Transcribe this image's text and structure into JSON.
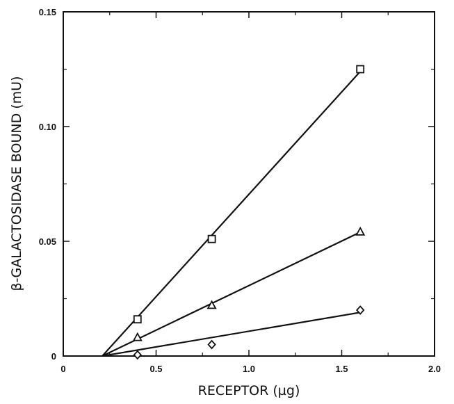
{
  "chart_data": {
    "type": "scatter",
    "title": "",
    "xlabel": "RECEPTOR (µg)",
    "ylabel": "β-GALACTOSIDASE BOUND (mU)",
    "xlim": [
      0,
      2.0
    ],
    "ylim": [
      0,
      0.15
    ],
    "x_ticks": [
      "0",
      "0.5",
      "1.0",
      "1.5",
      "2.0"
    ],
    "y_ticks": [
      "0",
      "0.05",
      "0.10",
      "0.15"
    ],
    "grid": false,
    "legend": "none",
    "series": [
      {
        "marker": "square",
        "points": [
          [
            0.4,
            0.016
          ],
          [
            0.8,
            0.051
          ],
          [
            1.6,
            0.125
          ]
        ],
        "fit_line": [
          [
            0.21,
            0.0
          ],
          [
            1.6,
            0.124
          ]
        ]
      },
      {
        "marker": "triangle",
        "points": [
          [
            0.4,
            0.008
          ],
          [
            0.8,
            0.022
          ],
          [
            1.6,
            0.054
          ]
        ],
        "fit_line": [
          [
            0.21,
            0.0
          ],
          [
            1.6,
            0.054
          ]
        ]
      },
      {
        "marker": "diamond",
        "points": [
          [
            0.4,
            0.0005
          ],
          [
            0.8,
            0.005
          ],
          [
            1.6,
            0.02
          ]
        ],
        "fit_line": [
          [
            0.21,
            0.0
          ],
          [
            1.6,
            0.019
          ]
        ]
      }
    ]
  }
}
